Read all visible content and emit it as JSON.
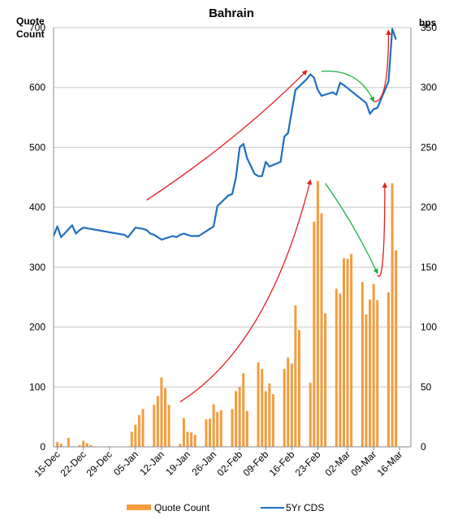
{
  "chart_data": {
    "type": "bar+line",
    "title": "Bahrain",
    "y_left_label_line1": "Quote",
    "y_left_label_line2": "Count",
    "y_right_label": "bps",
    "y_left_range": [
      0,
      700
    ],
    "y_left_ticks": [
      "0",
      "100",
      "200",
      "300",
      "400",
      "500",
      "600",
      "700"
    ],
    "y_right_range": [
      0,
      350
    ],
    "y_right_ticks": [
      "0",
      "50",
      "100",
      "150",
      "200",
      "250",
      "300",
      "350"
    ],
    "x_range": [
      "2011-12-14",
      "2012-03-19"
    ],
    "x_ticks": [
      "15-Dec",
      "22-Dec",
      "29-Dec",
      "05-Jan",
      "12-Jan",
      "19-Jan",
      "26-Jan",
      "02-Feb",
      "09-Feb",
      "16-Feb",
      "23-Feb",
      "02-Mar",
      "09-Mar",
      "16-Mar"
    ],
    "grid": true,
    "legend_position": "bottom",
    "series": [
      {
        "name": "Quote Count",
        "type": "bar",
        "axis": "left",
        "color": "#f39c3c",
        "data": [
          [
            "2011-12-15",
            8
          ],
          [
            "2011-12-16",
            5
          ],
          [
            "2011-12-18",
            15
          ],
          [
            "2011-12-21",
            3
          ],
          [
            "2011-12-22",
            10
          ],
          [
            "2011-12-23",
            6
          ],
          [
            "2011-12-24",
            3
          ],
          [
            "2012-01-04",
            25
          ],
          [
            "2012-01-05",
            37
          ],
          [
            "2012-01-06",
            53
          ],
          [
            "2012-01-07",
            63
          ],
          [
            "2012-01-10",
            70
          ],
          [
            "2012-01-11",
            85
          ],
          [
            "2012-01-12",
            116
          ],
          [
            "2012-01-13",
            98
          ],
          [
            "2012-01-14",
            70
          ],
          [
            "2012-01-17",
            5
          ],
          [
            "2012-01-18",
            48
          ],
          [
            "2012-01-19",
            25
          ],
          [
            "2012-01-20",
            24
          ],
          [
            "2012-01-21",
            20
          ],
          [
            "2012-01-24",
            46
          ],
          [
            "2012-01-25",
            47
          ],
          [
            "2012-01-26",
            71
          ],
          [
            "2012-01-27",
            58
          ],
          [
            "2012-01-28",
            61
          ],
          [
            "2012-01-31",
            63
          ],
          [
            "2012-02-01",
            93
          ],
          [
            "2012-02-02",
            100
          ],
          [
            "2012-02-03",
            123
          ],
          [
            "2012-02-04",
            60
          ],
          [
            "2012-02-07",
            141
          ],
          [
            "2012-02-08",
            130
          ],
          [
            "2012-02-09",
            93
          ],
          [
            "2012-02-10",
            106
          ],
          [
            "2012-02-11",
            88
          ],
          [
            "2012-02-14",
            130
          ],
          [
            "2012-02-15",
            149
          ],
          [
            "2012-02-16",
            139
          ],
          [
            "2012-02-17",
            236
          ],
          [
            "2012-02-18",
            195
          ],
          [
            "2012-02-21",
            107
          ],
          [
            "2012-02-22",
            376
          ],
          [
            "2012-02-23",
            444
          ],
          [
            "2012-02-24",
            390
          ],
          [
            "2012-02-25",
            223
          ],
          [
            "2012-02-28",
            264
          ],
          [
            "2012-02-29",
            256
          ],
          [
            "2012-03-01",
            315
          ],
          [
            "2012-03-02",
            314
          ],
          [
            "2012-03-03",
            322
          ],
          [
            "2012-03-06",
            275
          ],
          [
            "2012-03-07",
            221
          ],
          [
            "2012-03-08",
            246
          ],
          [
            "2012-03-09",
            272
          ],
          [
            "2012-03-10",
            245
          ],
          [
            "2012-03-13",
            258
          ],
          [
            "2012-03-14",
            440
          ],
          [
            "2012-03-15",
            328
          ]
        ]
      },
      {
        "name": "5Yr CDS",
        "type": "line",
        "axis": "right",
        "color": "#1f6fbf",
        "data": [
          [
            "2011-12-14",
            176
          ],
          [
            "2011-12-15",
            184
          ],
          [
            "2011-12-16",
            175
          ],
          [
            "2011-12-19",
            185
          ],
          [
            "2011-12-20",
            178
          ],
          [
            "2011-12-21",
            181
          ],
          [
            "2011-12-22",
            183
          ],
          [
            "2012-01-02",
            177
          ],
          [
            "2012-01-03",
            175
          ],
          [
            "2012-01-05",
            183
          ],
          [
            "2012-01-07",
            182
          ],
          [
            "2012-01-08",
            181
          ],
          [
            "2012-01-09",
            178
          ],
          [
            "2012-01-10",
            177
          ],
          [
            "2012-01-11",
            175
          ],
          [
            "2012-01-12",
            173
          ],
          [
            "2012-01-13",
            174
          ],
          [
            "2012-01-14",
            175
          ],
          [
            "2012-01-15",
            176
          ],
          [
            "2012-01-16",
            175
          ],
          [
            "2012-01-17",
            177
          ],
          [
            "2012-01-18",
            178
          ],
          [
            "2012-01-19",
            177
          ],
          [
            "2012-01-20",
            176
          ],
          [
            "2012-01-21",
            176
          ],
          [
            "2012-01-22",
            176
          ],
          [
            "2012-01-26",
            184
          ],
          [
            "2012-01-27",
            201
          ],
          [
            "2012-01-30",
            210
          ],
          [
            "2012-01-31",
            211
          ],
          [
            "2012-02-01",
            225
          ],
          [
            "2012-02-02",
            250
          ],
          [
            "2012-02-03",
            253
          ],
          [
            "2012-02-04",
            241
          ],
          [
            "2012-02-06",
            228
          ],
          [
            "2012-02-07",
            226
          ],
          [
            "2012-02-08",
            226
          ],
          [
            "2012-02-09",
            238
          ],
          [
            "2012-02-10",
            234
          ],
          [
            "2012-02-13",
            238
          ],
          [
            "2012-02-14",
            259
          ],
          [
            "2012-02-15",
            262
          ],
          [
            "2012-02-16",
            280
          ],
          [
            "2012-02-17",
            298
          ],
          [
            "2012-02-20",
            307
          ],
          [
            "2012-02-21",
            311
          ],
          [
            "2012-02-22",
            308
          ],
          [
            "2012-02-23",
            298
          ],
          [
            "2012-02-24",
            293
          ],
          [
            "2012-02-27",
            296
          ],
          [
            "2012-02-28",
            294
          ],
          [
            "2012-02-29",
            304
          ],
          [
            "2012-03-01",
            302
          ],
          [
            "2012-03-07",
            287
          ],
          [
            "2012-03-08",
            278
          ],
          [
            "2012-03-09",
            282
          ],
          [
            "2012-03-10",
            283
          ],
          [
            "2012-03-13",
            305
          ],
          [
            "2012-03-14",
            349
          ],
          [
            "2012-03-15",
            340
          ]
        ]
      }
    ],
    "annotations": [
      {
        "type": "arrow",
        "color": "#e31e1e",
        "axis": "left",
        "from": [
          "2012-01-08",
          412
        ],
        "ctrl": [
          "2012-02-01",
          510
        ],
        "to": [
          "2012-02-20",
          628
        ]
      },
      {
        "type": "arrow",
        "color": "#e31e1e",
        "axis": "left",
        "from": [
          "2012-01-17",
          75
        ],
        "ctrl": [
          "2012-02-10",
          170
        ],
        "to": [
          "2012-02-21",
          445
        ]
      },
      {
        "type": "arrow",
        "color": "#19b23b",
        "axis": "left",
        "from": [
          "2012-02-24",
          627
        ],
        "ctrl": [
          "2012-03-05",
          632
        ],
        "to": [
          "2012-03-09",
          577
        ]
      },
      {
        "type": "arrow",
        "color": "#19b23b",
        "axis": "left",
        "from": [
          "2012-02-25",
          440
        ],
        "ctrl": [
          "2012-03-04",
          370
        ],
        "to": [
          "2012-03-10",
          290
        ]
      },
      {
        "type": "arrow",
        "color": "#e31e1e",
        "axis": "left",
        "from": [
          "2012-03-09",
          577
        ],
        "ctrl": [
          "2012-03-13",
          570
        ],
        "to": [
          "2012-03-13",
          695
        ]
      },
      {
        "type": "arrow",
        "color": "#e31e1e",
        "axis": "left",
        "from": [
          "2012-03-10",
          287
        ],
        "ctrl": [
          "2012-03-12",
          265
        ],
        "to": [
          "2012-03-12",
          440
        ]
      }
    ],
    "legend": [
      "Quote Count",
      "5Yr CDS"
    ]
  }
}
